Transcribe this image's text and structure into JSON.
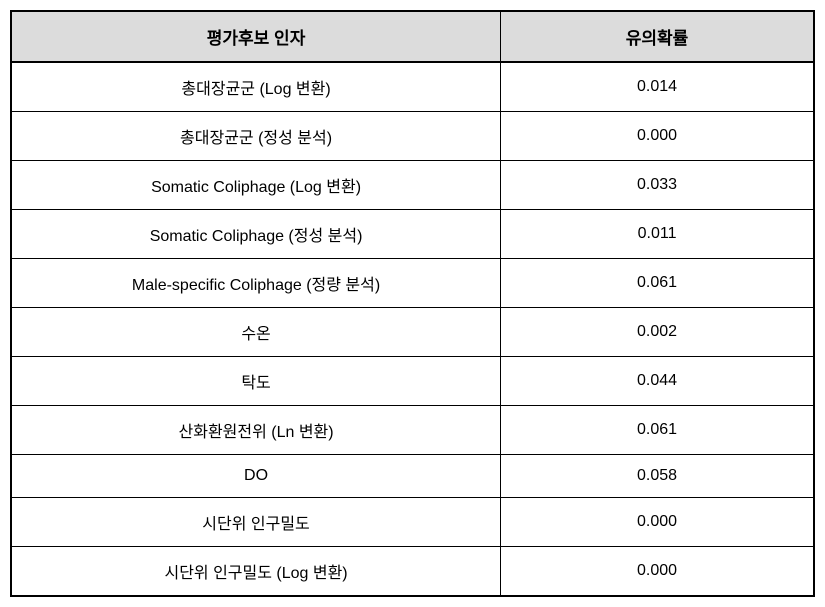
{
  "table": {
    "columns": [
      "평가후보 인자",
      "유의확률"
    ],
    "column_widths": [
      "61%",
      "39%"
    ],
    "header_bg": "#dcdcdc",
    "border_color": "#000000",
    "font_size_header": 17,
    "font_size_body": 16,
    "rows": [
      {
        "factor": "총대장균군 (Log 변환)",
        "value": "0.014"
      },
      {
        "factor": "총대장균군 (정성 분석)",
        "value": "0.000"
      },
      {
        "factor": "Somatic Coliphage (Log 변환)",
        "value": "0.033"
      },
      {
        "factor": "Somatic Coliphage (정성 분석)",
        "value": "0.011"
      },
      {
        "factor": "Male-specific Coliphage (정량 분석)",
        "value": "0.061"
      },
      {
        "factor": "수온",
        "value": "0.002"
      },
      {
        "factor": "탁도",
        "value": "0.044"
      },
      {
        "factor": "산화환원전위 (Ln 변환)",
        "value": "0.061"
      },
      {
        "factor": "DO",
        "value": "0.058"
      },
      {
        "factor": "시단위 인구밀도",
        "value": "0.000"
      },
      {
        "factor": "시단위 인구밀도 (Log 변환)",
        "value": "0.000"
      }
    ]
  }
}
